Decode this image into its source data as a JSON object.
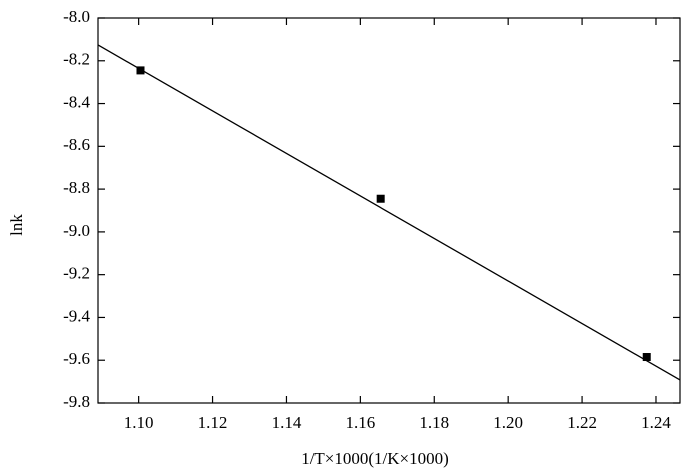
{
  "chart_data": {
    "type": "scatter",
    "xlabel": "1/T×1000(1/K×1000)",
    "ylabel": "lnk",
    "xlim": [
      1.089,
      1.2465
    ],
    "ylim": [
      -9.8,
      -8.0
    ],
    "xticks": [
      {
        "value": 1.1,
        "label": "1.10"
      },
      {
        "value": 1.12,
        "label": "1.12"
      },
      {
        "value": 1.14,
        "label": "1.14"
      },
      {
        "value": 1.16,
        "label": "1.16"
      },
      {
        "value": 1.18,
        "label": "1.18"
      },
      {
        "value": 1.2,
        "label": "1.20"
      },
      {
        "value": 1.22,
        "label": "1.22"
      },
      {
        "value": 1.24,
        "label": "1.24"
      }
    ],
    "yticks": [
      {
        "value": -9.8,
        "label": "-9.8"
      },
      {
        "value": -9.6,
        "label": "-9.6"
      },
      {
        "value": -9.4,
        "label": "-9.4"
      },
      {
        "value": -9.2,
        "label": "-9.2"
      },
      {
        "value": -9.0,
        "label": "-9.0"
      },
      {
        "value": -8.8,
        "label": "-8.8"
      },
      {
        "value": -8.6,
        "label": "-8.6"
      },
      {
        "value": -8.4,
        "label": "-8.4"
      },
      {
        "value": -8.2,
        "label": "-8.2"
      },
      {
        "value": -8.0,
        "label": "-8.0"
      }
    ],
    "series": [
      {
        "type": "scatter",
        "color": "#000000",
        "x": [
          1.1005,
          1.1655,
          1.2375
        ],
        "values": [
          -8.245,
          -8.845,
          -9.585
        ]
      },
      {
        "type": "line",
        "color": "#000000",
        "x": [
          1.089,
          1.2465
        ],
        "values": [
          -8.126,
          -9.692
        ]
      }
    ]
  }
}
